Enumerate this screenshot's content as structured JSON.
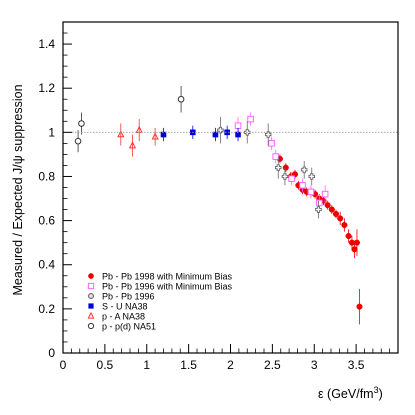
{
  "chart_data": {
    "type": "scatter",
    "xlabel": "ε  (GeV/fm",
    "xlabel_sup": "3",
    "xlabel_close": ")",
    "ylabel": "Measured / Expected  J/ψ suppression",
    "xlim": [
      0,
      4
    ],
    "ylim": [
      0,
      1.5
    ],
    "xticks": [
      0,
      0.5,
      1,
      1.5,
      2,
      2.5,
      3,
      3.5
    ],
    "xtick_labels": [
      "0",
      "0.5",
      "1",
      "1.5",
      "2",
      "2.5",
      "3",
      "3.5"
    ],
    "yticks": [
      0,
      0.2,
      0.4,
      0.6,
      0.8,
      1,
      1.2,
      1.4
    ],
    "ytick_labels": [
      "0",
      "0.2",
      "0.4",
      "0.6",
      "0.8",
      "1",
      "1.2",
      "1.4"
    ],
    "reference_line": 1.0,
    "grid": false,
    "legend_position": "lower-left",
    "series": [
      {
        "name": "Pb - Pb 1998 with Minimum Bias",
        "marker": "filled-circle",
        "color": "#ee0000",
        "points": [
          [
            2.59,
            0.88,
            0.02
          ],
          [
            2.66,
            0.84,
            0.02
          ],
          [
            2.72,
            0.8,
            0.02
          ],
          [
            2.77,
            0.81,
            0.02
          ],
          [
            2.81,
            0.76,
            0.02
          ],
          [
            2.86,
            0.74,
            0.02
          ],
          [
            2.91,
            0.73,
            0.02
          ],
          [
            2.96,
            0.73,
            0.02
          ],
          [
            3.01,
            0.72,
            0.02
          ],
          [
            3.06,
            0.7,
            0.02
          ],
          [
            3.11,
            0.69,
            0.02
          ],
          [
            3.16,
            0.67,
            0.02
          ],
          [
            3.21,
            0.65,
            0.02
          ],
          [
            3.26,
            0.63,
            0.02
          ],
          [
            3.31,
            0.61,
            0.03
          ],
          [
            3.36,
            0.58,
            0.03
          ],
          [
            3.41,
            0.53,
            0.03
          ],
          [
            3.45,
            0.5,
            0.03
          ],
          [
            3.48,
            0.47,
            0.04
          ],
          [
            3.51,
            0.5,
            0.06
          ],
          [
            3.54,
            0.21,
            0.08
          ]
        ]
      },
      {
        "name": "Pb - Pb 1996 with Minimum Bias",
        "marker": "open-square",
        "color": "#ff66ff",
        "points": [
          [
            2.09,
            1.03,
            0.04
          ],
          [
            2.24,
            1.06,
            0.03
          ],
          [
            2.49,
            0.95,
            0.03
          ],
          [
            2.54,
            0.89,
            0.03
          ],
          [
            2.73,
            0.79,
            0.03
          ],
          [
            2.86,
            0.76,
            0.03
          ],
          [
            2.96,
            0.73,
            0.03
          ],
          [
            3.06,
            0.68,
            0.04
          ],
          [
            3.13,
            0.72,
            0.04
          ]
        ]
      },
      {
        "name": "Pb - Pb 1996",
        "marker": "open-cross",
        "color": "#666666",
        "points": [
          [
            1.88,
            1.01,
            0.06
          ],
          [
            2.2,
            1.0,
            0.05
          ],
          [
            2.45,
            0.99,
            0.05
          ],
          [
            2.57,
            0.84,
            0.05
          ],
          [
            2.65,
            0.8,
            0.04
          ],
          [
            2.88,
            0.83,
            0.04
          ],
          [
            2.97,
            0.8,
            0.04
          ],
          [
            3.05,
            0.65,
            0.04
          ]
        ]
      },
      {
        "name": "S - U      NA38",
        "marker": "filled-square",
        "color": "#0000dd",
        "points": [
          [
            1.2,
            0.99,
            0.03
          ],
          [
            1.55,
            1.0,
            0.03
          ],
          [
            1.82,
            0.99,
            0.03
          ],
          [
            1.96,
            1.0,
            0.03
          ],
          [
            2.09,
            0.99,
            0.03
          ]
        ]
      },
      {
        "name": "p - A       NA38",
        "marker": "open-triangle",
        "color": "#ff3333",
        "points": [
          [
            0.69,
            0.99,
            0.05
          ],
          [
            0.83,
            0.94,
            0.05
          ],
          [
            0.91,
            1.01,
            0.05
          ],
          [
            1.1,
            0.98,
            0.04
          ]
        ]
      },
      {
        "name": "p - p(d)   NA51",
        "marker": "open-circle",
        "color": "#333333",
        "points": [
          [
            0.18,
            0.96,
            0.05
          ],
          [
            0.22,
            1.04,
            0.05
          ],
          [
            1.41,
            1.15,
            0.06
          ]
        ]
      }
    ]
  }
}
